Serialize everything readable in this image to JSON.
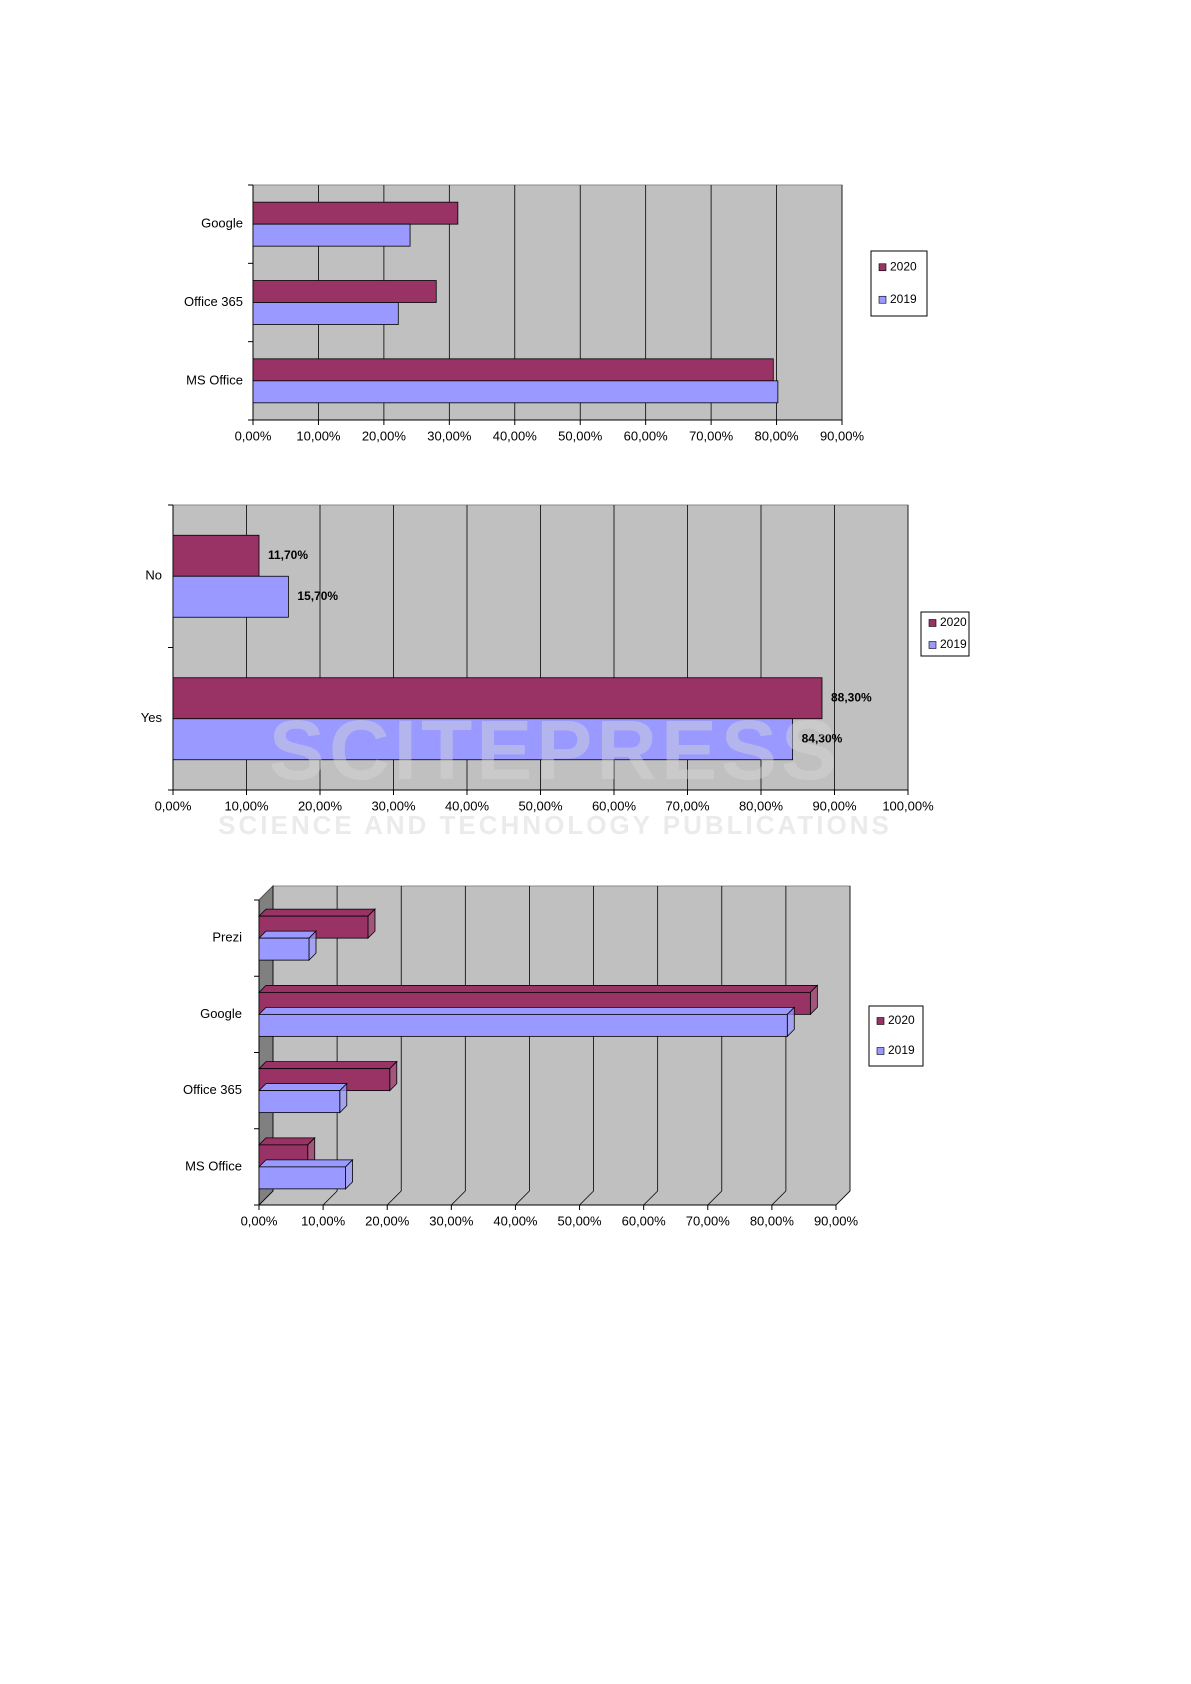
{
  "chart_data": [
    {
      "type": "barh",
      "categories": [
        "Google",
        "Office 365",
        "MS Office"
      ],
      "series": [
        {
          "name": "2020",
          "color": "#993366",
          "values": [
            31.3,
            28.0,
            79.5
          ]
        },
        {
          "name": "2019",
          "color": "#9999ff",
          "values": [
            24.0,
            22.2,
            80.2
          ]
        }
      ],
      "xlim": [
        0,
        90
      ],
      "xticks": [
        {
          "value": 0,
          "label": "0,00%"
        },
        {
          "value": 10,
          "label": "10,00%"
        },
        {
          "value": 20,
          "label": "20,00%"
        },
        {
          "value": 30,
          "label": "30,00%"
        },
        {
          "value": 40,
          "label": "40,00%"
        },
        {
          "value": 50,
          "label": "50,00%"
        },
        {
          "value": 60,
          "label": "60,00%"
        },
        {
          "value": 70,
          "label": "70,00%"
        },
        {
          "value": 80,
          "label": "80,00%"
        },
        {
          "value": 90,
          "label": "90,00%"
        }
      ],
      "grid": true,
      "legend": "right"
    },
    {
      "type": "barh",
      "categories": [
        "No",
        "Yes"
      ],
      "series": [
        {
          "name": "2020",
          "color": "#993366",
          "values": [
            11.7,
            88.3
          ],
          "value_labels": [
            "11,70%",
            "88,30%"
          ]
        },
        {
          "name": "2019",
          "color": "#9999ff",
          "values": [
            15.7,
            84.3
          ],
          "value_labels": [
            "15,70%",
            "84,30%"
          ]
        }
      ],
      "xlim": [
        0,
        100
      ],
      "xticks": [
        {
          "value": 0,
          "label": "0,00%"
        },
        {
          "value": 10,
          "label": "10,00%"
        },
        {
          "value": 20,
          "label": "20,00%"
        },
        {
          "value": 30,
          "label": "30,00%"
        },
        {
          "value": 40,
          "label": "40,00%"
        },
        {
          "value": 50,
          "label": "50,00%"
        },
        {
          "value": 60,
          "label": "60,00%"
        },
        {
          "value": 70,
          "label": "70,00%"
        },
        {
          "value": 80,
          "label": "80,00%"
        },
        {
          "value": 90,
          "label": "90,00%"
        },
        {
          "value": 100,
          "label": "100,00%"
        }
      ],
      "grid": true,
      "legend": "right"
    },
    {
      "type": "barh3d",
      "categories": [
        "Prezi",
        "Google",
        "Office 365",
        "MS Office"
      ],
      "series": [
        {
          "name": "2020",
          "color": "#993366",
          "values": [
            17.0,
            86.0,
            20.4,
            7.6
          ]
        },
        {
          "name": "2019",
          "color": "#9999ff",
          "values": [
            7.8,
            82.4,
            12.6,
            13.5
          ]
        }
      ],
      "xlim": [
        0,
        90
      ],
      "xticks": [
        {
          "value": 0,
          "label": "0,00%"
        },
        {
          "value": 10,
          "label": "10,00%"
        },
        {
          "value": 20,
          "label": "20,00%"
        },
        {
          "value": 30,
          "label": "30,00%"
        },
        {
          "value": 40,
          "label": "40,00%"
        },
        {
          "value": 50,
          "label": "50,00%"
        },
        {
          "value": 60,
          "label": "60,00%"
        },
        {
          "value": 70,
          "label": "70,00%"
        },
        {
          "value": 80,
          "label": "80,00%"
        },
        {
          "value": 90,
          "label": "90,00%"
        }
      ],
      "grid": true,
      "legend": "right"
    }
  ],
  "watermark": {
    "title": "SCITEPRESS",
    "subtitle": "SCIENCE AND TECHNOLOGY PUBLICATIONS"
  }
}
